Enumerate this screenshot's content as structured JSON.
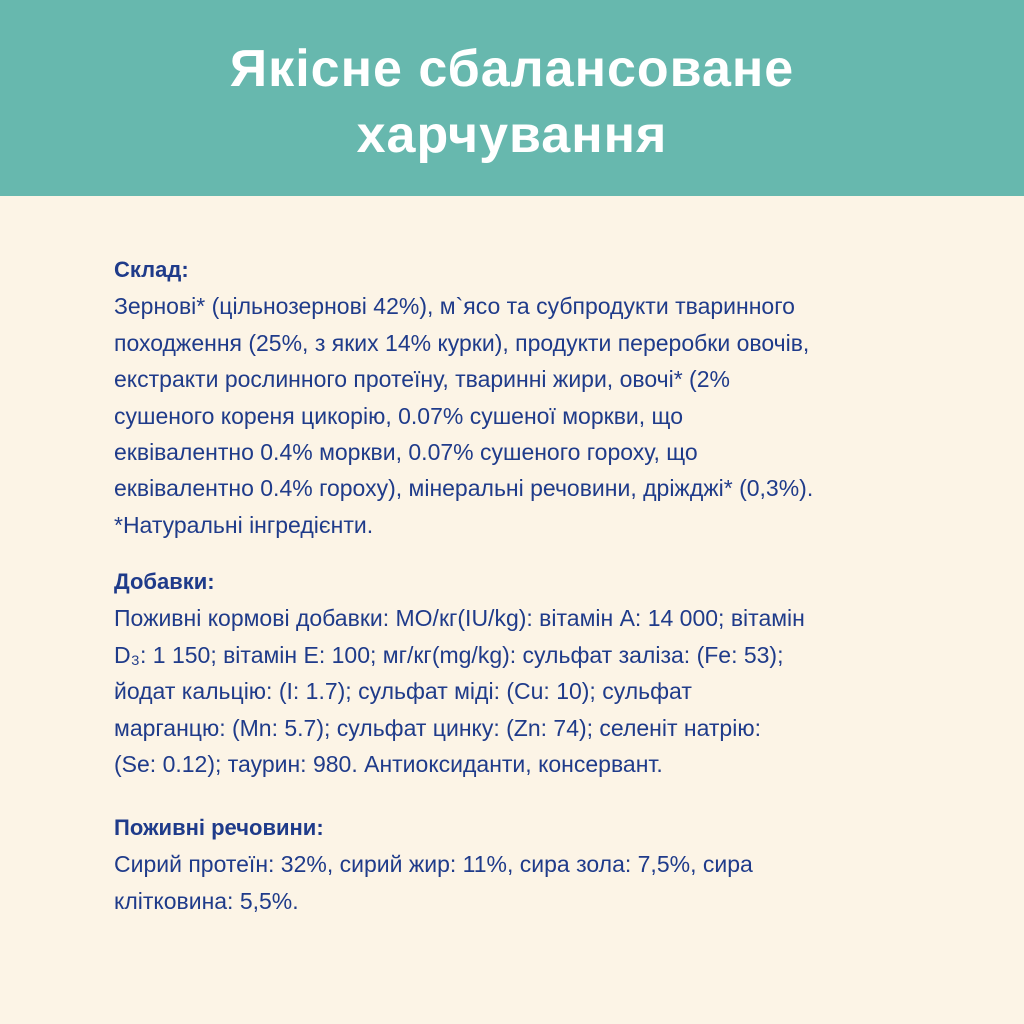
{
  "header": {
    "title_lines": [
      "Якісне сбалансоване",
      "харчування"
    ],
    "background": "#67b8ae"
  },
  "colors": {
    "text": "#1f3b8a",
    "background": "#fcf4e6"
  },
  "sections": [
    {
      "heading": "Склад:",
      "lines": [
        "Зернові* (цільнозернові 42%), м`ясо та субпродукти тваринного",
        "походження (25%, з яких 14% курки), продукти переробки овочів,",
        "екстракти рослинного протеїну, тваринні жири, овочі* (2%",
        "сушеного кореня цикорію, 0.07% сушеної моркви, що",
        "еквівалентно 0.4% моркви, 0.07% сушеного гороху, що",
        "еквівалентно 0.4% гороху), мінеральні речовини, дріжджі* (0,3%).",
        "*Натуральні інгредієнти."
      ]
    },
    {
      "heading": "Добавки:",
      "lines": [
        "Поживні кормові добавки: МО/кг(IU/kg): вітамін А: 14 000; вітамін",
        "D₃: 1 150; вітамін Е: 100; мг/кг(mg/kg): сульфат заліза: (Fe: 53);",
        "йодат кальцію: (I: 1.7); сульфат міді: (Cu: 10); сульфат",
        "марганцю: (Mn: 5.7); сульфат цинку: (Zn: 74); селеніт натрію:",
        "(Se: 0.12); таурин: 980. Антиоксиданти, консервант."
      ]
    },
    {
      "heading": "Поживні речовини:",
      "lines": [
        "Сирий протеїн: 32%, сирий жир: 11%, сира зола: 7,5%, сира",
        "клітковина: 5,5%."
      ]
    }
  ]
}
